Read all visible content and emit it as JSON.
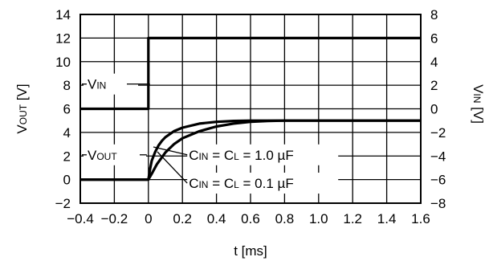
{
  "chart_data": {
    "type": "line",
    "xlabel": "t [ms]",
    "ylabel_left": {
      "main": "V",
      "sub": "OUT",
      "unit": " [V]"
    },
    "ylabel_right": {
      "main": "V",
      "sub": "IN",
      "unit": " [V]"
    },
    "xlim": [
      -0.4,
      1.6
    ],
    "ylim_left": [
      -2,
      14
    ],
    "ylim_right": [
      -8,
      8
    ],
    "x_ticks": [
      "−0.4",
      "−0.2",
      "0",
      "0.2",
      "0.4",
      "0.6",
      "0.8",
      "1.0",
      "1.2",
      "1.4",
      "1.6"
    ],
    "y_ticks_left": [
      "14",
      "12",
      "10",
      "8",
      "6",
      "4",
      "2",
      "0",
      "−2"
    ],
    "y_ticks_right": [
      "8",
      "6",
      "4",
      "2",
      "0",
      "−2",
      "−4",
      "−6",
      "−8"
    ],
    "grid": true,
    "series": [
      {
        "name": "VIN",
        "axis": "right",
        "points": [
          [
            -0.4,
            0
          ],
          [
            0,
            0
          ],
          [
            0,
            6
          ],
          [
            1.6,
            6
          ]
        ]
      },
      {
        "name": "VOUT, CIN = CL = 0.1 µF",
        "axis": "left",
        "points": [
          [
            -0.4,
            0
          ],
          [
            0,
            0
          ],
          [
            0.01,
            0.9
          ],
          [
            0.02,
            1.6
          ],
          [
            0.04,
            2.35
          ],
          [
            0.06,
            2.9
          ],
          [
            0.08,
            3.3
          ],
          [
            0.1,
            3.6
          ],
          [
            0.15,
            4.1
          ],
          [
            0.2,
            4.4
          ],
          [
            0.3,
            4.75
          ],
          [
            0.4,
            4.9
          ],
          [
            0.5,
            4.97
          ],
          [
            0.6,
            5.0
          ],
          [
            1.6,
            5.0
          ]
        ]
      },
      {
        "name": "VOUT, CIN = CL = 1.0 µF",
        "axis": "left",
        "points": [
          [
            -0.4,
            0
          ],
          [
            0,
            0
          ],
          [
            0.02,
            0.5
          ],
          [
            0.05,
            1.3
          ],
          [
            0.08,
            1.9
          ],
          [
            0.1,
            2.3
          ],
          [
            0.15,
            3.0
          ],
          [
            0.2,
            3.5
          ],
          [
            0.3,
            4.1
          ],
          [
            0.4,
            4.5
          ],
          [
            0.5,
            4.75
          ],
          [
            0.6,
            4.9
          ],
          [
            0.7,
            4.97
          ],
          [
            0.8,
            5.0
          ],
          [
            1.6,
            5.0
          ]
        ]
      }
    ],
    "annotations": [
      {
        "id": "vin",
        "main": "V",
        "sub": "IN",
        "x": -0.4,
        "y": 8.1
      },
      {
        "id": "vout",
        "main": "V",
        "sub": "OUT",
        "x": -0.4,
        "y": 2.1
      },
      {
        "id": "c10",
        "text": [
          "C",
          "IN",
          " = C",
          "L",
          " = 1.0 µF"
        ],
        "x": 0.2,
        "y": 2.1
      },
      {
        "id": "c01",
        "text": [
          "C",
          "IN",
          " = C",
          "L",
          " = 0.1 µF"
        ],
        "x": 0.2,
        "y": -0.3
      }
    ]
  }
}
